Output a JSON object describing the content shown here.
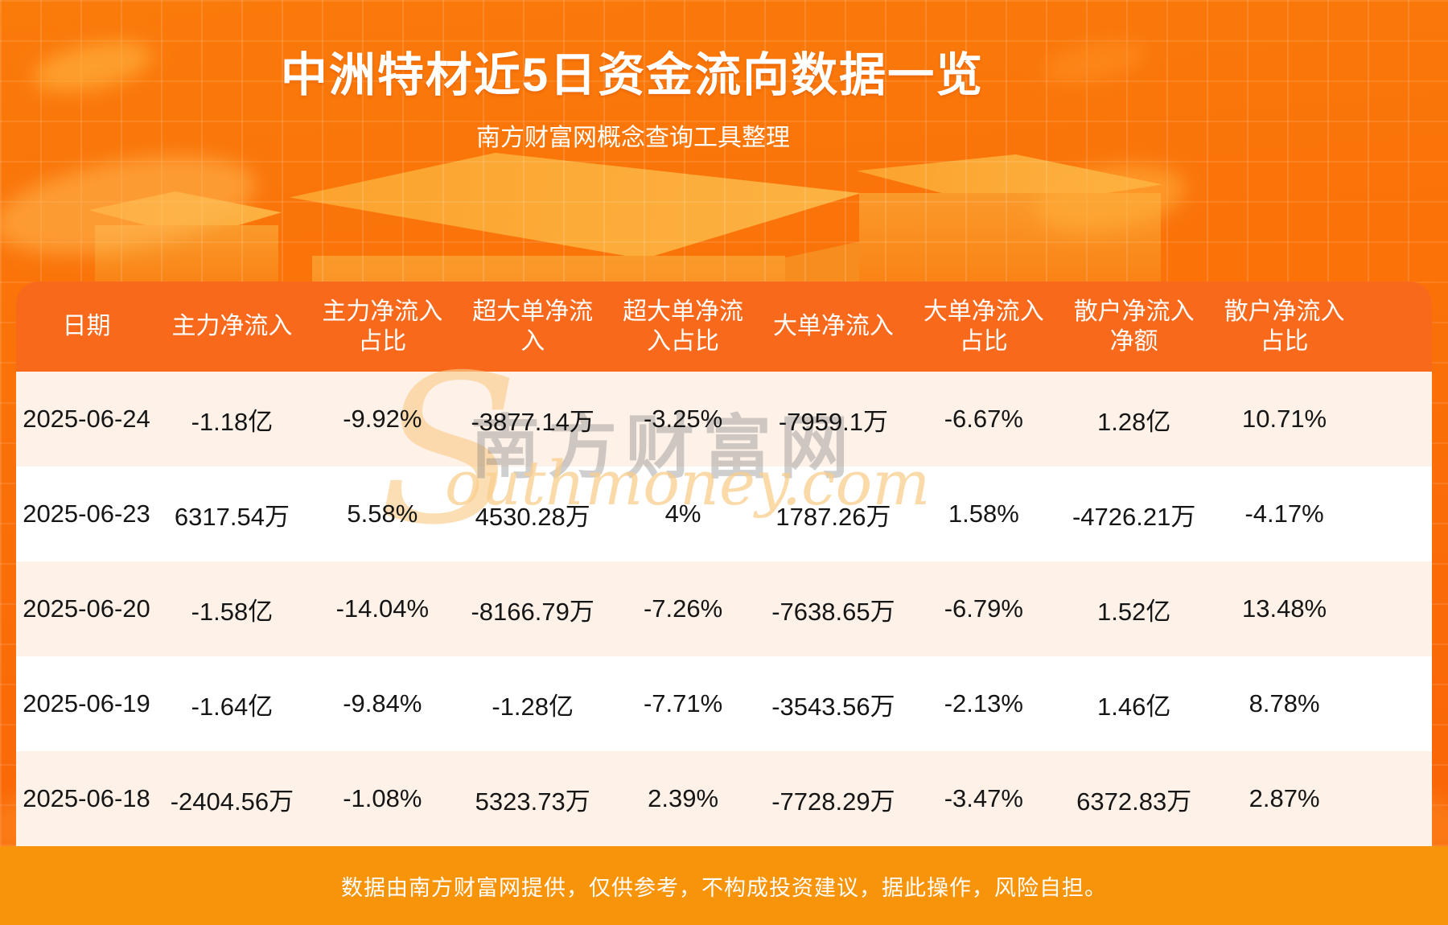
{
  "page": {
    "title": "中洲特材近5日资金流向数据一览",
    "subtitle": "南方财富网概念查询工具整理",
    "footer_note": "数据由南方财富网提供，仅供参考，不构成投资建议，据此操作，风险自担。"
  },
  "watermark": {
    "swoosh": "S",
    "cjk": "南方财富网",
    "latin": "outhmoney.com"
  },
  "colors": {
    "background_top": "#fa7a0a",
    "background_bottom": "#f96307",
    "header_band": "#f9691c",
    "row_alt": "#fdf1e8",
    "row_white": "#ffffff",
    "footer_band": "#f7940a",
    "title_text": "#ffffff",
    "cell_text": "#151515"
  },
  "chart_data": {
    "type": "table",
    "title": "中洲特材近5日资金流向数据一览",
    "columns": [
      {
        "label": "日期"
      },
      {
        "label": "主力净流入"
      },
      {
        "label": "主力净流入\n占比"
      },
      {
        "label": "超大单净流\n入"
      },
      {
        "label": "超大单净流\n入占比"
      },
      {
        "label": "大单净流入"
      },
      {
        "label": "大单净流入\n占比"
      },
      {
        "label": "散户净流入\n净额"
      },
      {
        "label": "散户净流入\n占比"
      }
    ],
    "rows": [
      [
        "2025-06-24",
        "-1.18亿",
        "-9.92%",
        "-3877.14万",
        "-3.25%",
        "-7959.1万",
        "-6.67%",
        "1.28亿",
        "10.71%"
      ],
      [
        "2025-06-23",
        "6317.54万",
        "5.58%",
        "4530.28万",
        "4%",
        "1787.26万",
        "1.58%",
        "-4726.21万",
        "-4.17%"
      ],
      [
        "2025-06-20",
        "-1.58亿",
        "-14.04%",
        "-8166.79万",
        "-7.26%",
        "-7638.65万",
        "-6.79%",
        "1.52亿",
        "13.48%"
      ],
      [
        "2025-06-19",
        "-1.64亿",
        "-9.84%",
        "-1.28亿",
        "-7.71%",
        "-3543.56万",
        "-2.13%",
        "1.46亿",
        "8.78%"
      ],
      [
        "2025-06-18",
        "-2404.56万",
        "-1.08%",
        "5323.73万",
        "2.39%",
        "-7728.29万",
        "-3.47%",
        "6372.83万",
        "2.87%"
      ]
    ]
  }
}
